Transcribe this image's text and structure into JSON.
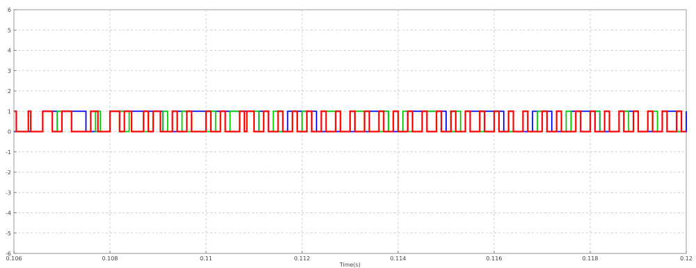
{
  "chart_data": {
    "type": "line",
    "title": "",
    "xlabel": "Time(s)",
    "ylabel": "",
    "xlim": [
      0.106,
      0.12
    ],
    "ylim": [
      -6,
      6
    ],
    "xticks": [
      "0.106",
      "0.108",
      "0.11",
      "0.112",
      "0.114",
      "0.116",
      "0.118",
      "0.12"
    ],
    "yticks": [
      "6",
      "5",
      "4",
      "3",
      "2",
      "1",
      "0",
      "-1",
      "-2",
      "-3",
      "-4",
      "-5",
      "-6"
    ],
    "grid": true,
    "series": [
      {
        "color": "#0000ff",
        "shape": "square-wave",
        "low": 0,
        "high": 1,
        "edges": [
          0.1066,
          0.1075,
          0.108,
          0.1091,
          0.1094,
          0.111,
          0.1111,
          0.1113,
          0.1117,
          0.1123,
          0.1134,
          0.1138,
          0.1142,
          0.115,
          0.1154,
          0.1162,
          0.1168,
          0.1172,
          0.1176,
          0.1182,
          0.1186,
          0.119,
          0.1195,
          0.1198,
          0.12
        ]
      },
      {
        "color": "#00cc00",
        "shape": "pulses",
        "low": 0,
        "high": 1,
        "pulses": [
          [
            0.1069,
            0.107
          ],
          [
            0.1077,
            0.1078
          ],
          [
            0.1082,
            0.1084
          ],
          [
            0.1087,
            0.1088
          ],
          [
            0.1091,
            0.1092
          ],
          [
            0.1095,
            0.1097
          ],
          [
            0.11,
            0.1102
          ],
          [
            0.1105,
            0.1107
          ],
          [
            0.111,
            0.1111
          ],
          [
            0.1114,
            0.1116
          ],
          [
            0.112,
            0.1121
          ],
          [
            0.1125,
            0.1127
          ],
          [
            0.1131,
            0.1133
          ],
          [
            0.1136,
            0.1138
          ],
          [
            0.1141,
            0.1143
          ],
          [
            0.1146,
            0.1148
          ],
          [
            0.1151,
            0.1153
          ],
          [
            0.1157,
            0.1158
          ],
          [
            0.1163,
            0.1164
          ],
          [
            0.1169,
            0.117
          ],
          [
            0.1175,
            0.1176
          ],
          [
            0.1181,
            0.1182
          ],
          [
            0.1187,
            0.1188
          ],
          [
            0.1193,
            0.1194
          ],
          [
            0.1198,
            0.1199
          ]
        ]
      },
      {
        "color": "#ff0000",
        "shape": "square-wave",
        "low": 0,
        "high": 1,
        "start_level": 1,
        "edges": [
          0.10605,
          0.1063,
          0.10635,
          0.1066,
          0.1068,
          0.107,
          0.1072,
          0.1076,
          0.10775,
          0.108,
          0.1082,
          0.1083,
          0.10845,
          0.1087,
          0.1088,
          0.1089,
          0.10905,
          0.1093,
          0.1094,
          0.1096,
          0.1097,
          0.11,
          0.1101,
          0.1103,
          0.1104,
          0.1107,
          0.1108,
          0.11085,
          0.111,
          0.1112,
          0.1113,
          0.1115,
          0.1116,
          0.1118,
          0.1119,
          0.1121,
          0.1122,
          0.1124,
          0.1125,
          0.1127,
          0.1128,
          0.113,
          0.1131,
          0.1133,
          0.1134,
          0.1136,
          0.1137,
          0.1139,
          0.114,
          0.1142,
          0.1143,
          0.1145,
          0.1146,
          0.1148,
          0.1149,
          0.1151,
          0.1152,
          0.1154,
          0.1155,
          0.1157,
          0.1158,
          0.116,
          0.1161,
          0.1163,
          0.1164,
          0.1166,
          0.1167,
          0.117,
          0.1171,
          0.1173,
          0.1174,
          0.1177,
          0.1178,
          0.118,
          0.1181,
          0.1183,
          0.1184,
          0.1186,
          0.1187,
          0.1189,
          0.119,
          0.1192,
          0.1193,
          0.1195,
          0.1196,
          0.1198,
          0.1199
        ]
      }
    ]
  }
}
